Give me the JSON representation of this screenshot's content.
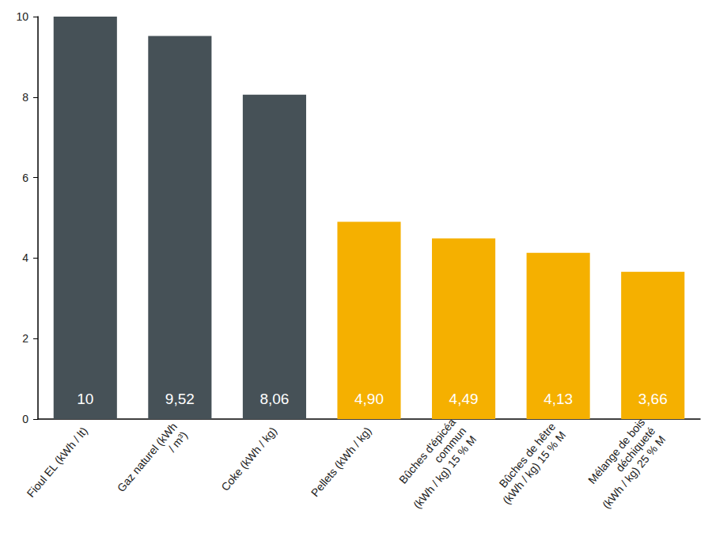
{
  "chart_data": {
    "type": "bar",
    "categories": [
      "Fioul EL (kWh / lt)",
      "Gaz naturel (kWh\n/ m³)",
      "Coke (kWh / kg)",
      "Pellets (kWh / kg)",
      "Bûches d'épicéa\ncommun\n(kWh / kg) 15 % M",
      "Bûches de hêtre\n(kWh / kg) 15 % M",
      "Mélange de bois\ndéchiqueté\n(kWh / kg) 25 % M"
    ],
    "values": [
      10,
      9.52,
      8.06,
      4.9,
      4.49,
      4.13,
      3.66
    ],
    "value_labels": [
      "10",
      "9,52",
      "8,06",
      "4,90",
      "4,49",
      "4,13",
      "3,66"
    ],
    "colors": [
      "#465157",
      "#465157",
      "#465157",
      "#f5b000",
      "#f5b000",
      "#f5b000",
      "#f5b000"
    ],
    "data_labels": true,
    "ylim": [
      0,
      10
    ],
    "yticks": [
      0,
      2,
      4,
      6,
      8,
      10
    ],
    "grid": false
  }
}
